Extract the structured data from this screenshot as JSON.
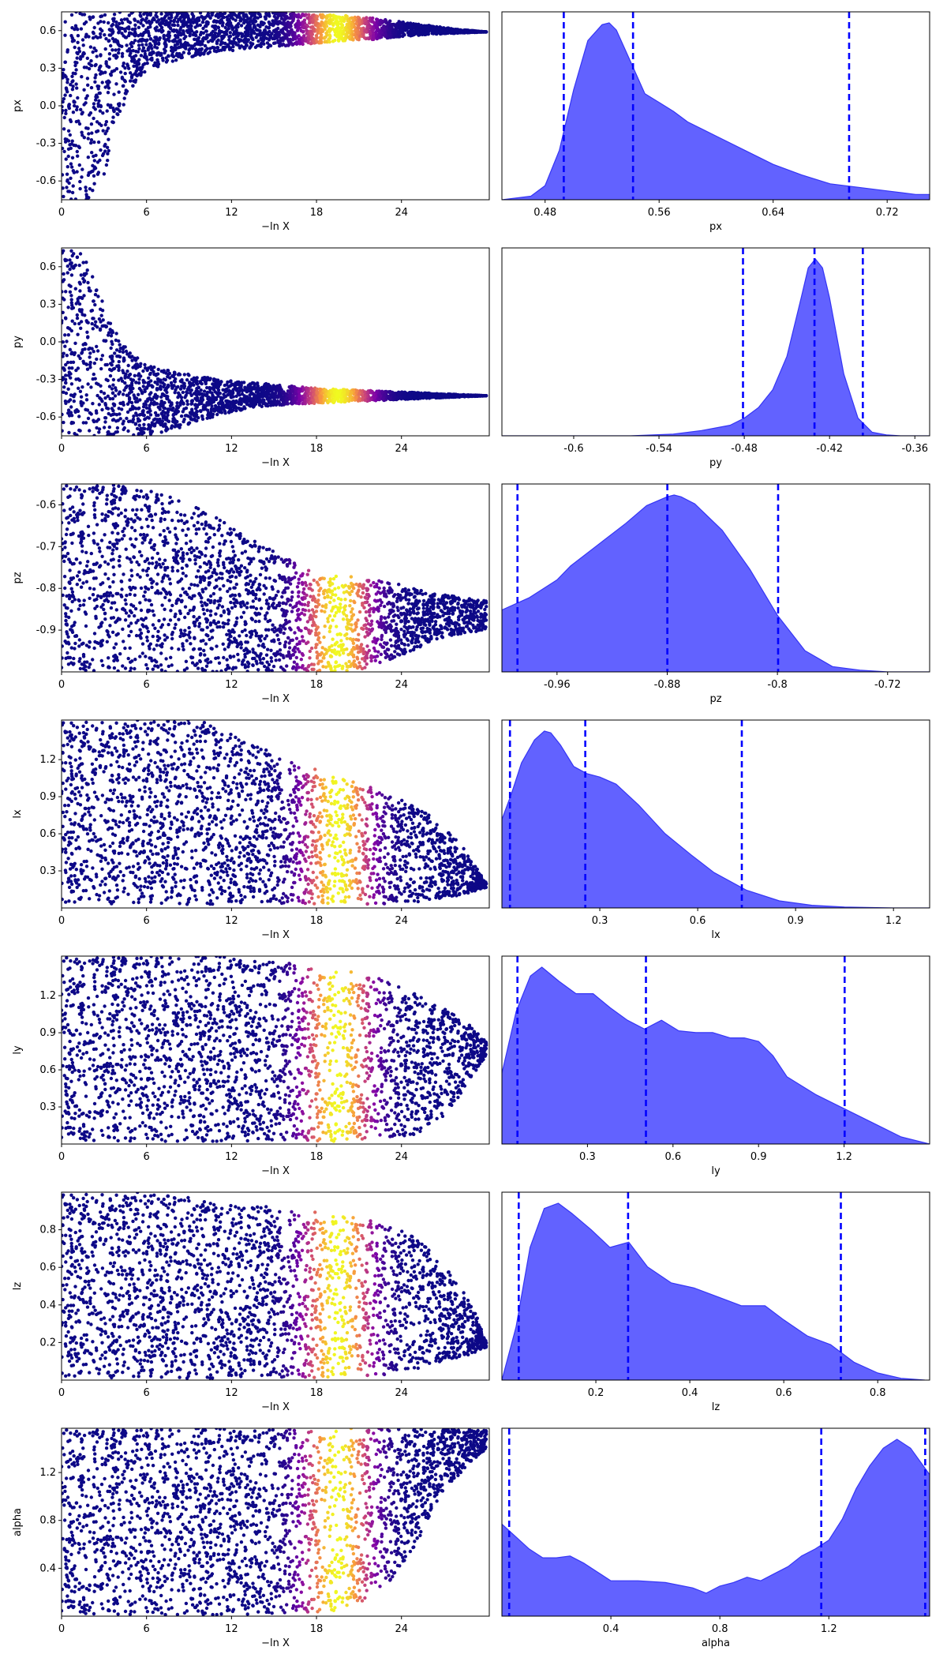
{
  "colors": {
    "kde_fill": "#6262ff",
    "kde_line": "#3535f5",
    "quantile_line": "#0000ff",
    "scatter_low": "#0d0887",
    "scatter_mid": "#cc4778",
    "scatter_high": "#f0f921"
  },
  "chart_data": [
    {
      "type": "scatter",
      "ylabel": "px",
      "xlabel": "−ln X",
      "x_ticks": [
        "0",
        "6",
        "12",
        "18",
        "24"
      ],
      "y_ticks": [
        "0.6",
        "0.3",
        "0.0",
        "-0.3",
        "-0.6"
      ],
      "xlim": [
        0,
        30.2
      ],
      "ylim": [
        -0.75,
        0.75
      ],
      "envelope": {
        "x": [
          0,
          1,
          2,
          3,
          4,
          5,
          6,
          8,
          10,
          12,
          14,
          16,
          18,
          20,
          22,
          24,
          26,
          28,
          30
        ],
        "lower": [
          -0.75,
          -0.75,
          -0.75,
          -0.55,
          -0.1,
          0.15,
          0.28,
          0.36,
          0.41,
          0.44,
          0.46,
          0.48,
          0.5,
          0.52,
          0.53,
          0.55,
          0.57,
          0.58,
          0.59
        ],
        "upper": [
          0.75,
          0.75,
          0.75,
          0.75,
          0.75,
          0.75,
          0.75,
          0.75,
          0.75,
          0.75,
          0.75,
          0.74,
          0.73,
          0.72,
          0.7,
          0.67,
          0.64,
          0.61,
          0.59
        ]
      },
      "weight_peak_x": 19.5,
      "weight_width": 1.6
    },
    {
      "type": "area",
      "xlabel": "px",
      "x_ticks": [
        0.48,
        0.56,
        0.64,
        0.72
      ],
      "xlim": [
        0.4497,
        0.7498
      ],
      "kde": {
        "x": [
          0.45,
          0.47,
          0.48,
          0.49,
          0.5,
          0.51,
          0.52,
          0.525,
          0.53,
          0.54,
          0.55,
          0.56,
          0.57,
          0.58,
          0.6,
          0.62,
          0.64,
          0.66,
          0.68,
          0.7,
          0.72,
          0.74,
          0.75
        ],
        "y": [
          0,
          0.02,
          0.08,
          0.28,
          0.62,
          0.9,
          0.99,
          1.0,
          0.96,
          0.78,
          0.6,
          0.55,
          0.5,
          0.44,
          0.36,
          0.28,
          0.2,
          0.14,
          0.09,
          0.07,
          0.05,
          0.03,
          0.03
        ]
      },
      "quantiles": [
        0.4931,
        0.5417,
        0.6933
      ]
    },
    {
      "type": "scatter",
      "ylabel": "py",
      "xlabel": "−ln X",
      "x_ticks": [
        "0",
        "6",
        "12",
        "18",
        "24"
      ],
      "y_ticks": [
        "0.6",
        "0.3",
        "0.0",
        "-0.3",
        "-0.6"
      ],
      "xlim": [
        0,
        30.2
      ],
      "ylim": [
        -0.75,
        0.75
      ],
      "envelope": {
        "x": [
          0,
          1,
          2,
          3,
          4,
          5,
          6,
          8,
          10,
          12,
          14,
          16,
          18,
          20,
          22,
          24,
          26,
          28,
          30
        ],
        "lower": [
          -0.75,
          -0.75,
          -0.75,
          -0.75,
          -0.75,
          -0.75,
          -0.75,
          -0.7,
          -0.62,
          -0.56,
          -0.52,
          -0.5,
          -0.49,
          -0.48,
          -0.47,
          -0.46,
          -0.45,
          -0.44,
          -0.43
        ],
        "upper": [
          0.75,
          0.75,
          0.62,
          0.3,
          0.05,
          -0.1,
          -0.18,
          -0.24,
          -0.28,
          -0.31,
          -0.33,
          -0.35,
          -0.37,
          -0.38,
          -0.39,
          -0.4,
          -0.41,
          -0.42,
          -0.43
        ]
      },
      "weight_peak_x": 19.5,
      "weight_width": 1.6
    },
    {
      "type": "area",
      "xlabel": "py",
      "x_ticks": [
        -0.6,
        -0.54,
        -0.48,
        -0.42,
        -0.36
      ],
      "xlim": [
        -0.6505,
        -0.3496
      ],
      "kde": {
        "x": [
          -0.65,
          -0.56,
          -0.53,
          -0.51,
          -0.49,
          -0.48,
          -0.47,
          -0.46,
          -0.45,
          -0.44,
          -0.435,
          -0.43,
          -0.425,
          -0.42,
          -0.41,
          -0.4,
          -0.39,
          -0.38,
          -0.37,
          -0.35
        ],
        "y": [
          0,
          0,
          0.01,
          0.03,
          0.06,
          0.1,
          0.16,
          0.26,
          0.45,
          0.78,
          0.95,
          1.0,
          0.95,
          0.78,
          0.35,
          0.1,
          0.02,
          0.005,
          0,
          0
        ]
      },
      "quantiles": [
        -0.4809,
        -0.4306,
        -0.3966
      ]
    },
    {
      "type": "scatter",
      "ylabel": "pz",
      "xlabel": "−ln X",
      "x_ticks": [
        "0",
        "6",
        "12",
        "18",
        "24"
      ],
      "y_ticks": [
        "-0.6",
        "-0.7",
        "-0.8",
        "-0.9"
      ],
      "xlim": [
        0,
        30.2
      ],
      "ylim": [
        -1.0,
        -0.55
      ],
      "envelope": {
        "x": [
          0,
          4,
          8,
          12,
          14,
          16,
          18,
          20,
          22,
          24,
          26,
          28,
          30
        ],
        "lower": [
          -1.0,
          -1.0,
          -1.0,
          -1.0,
          -1.0,
          -1.0,
          -1.0,
          -1.0,
          -0.99,
          -0.96,
          -0.93,
          -0.91,
          -0.9
        ],
        "upper": [
          -0.55,
          -0.55,
          -0.58,
          -0.65,
          -0.69,
          -0.73,
          -0.76,
          -0.77,
          -0.78,
          -0.79,
          -0.81,
          -0.82,
          -0.83
        ]
      },
      "weight_peak_x": 19.5,
      "weight_width": 1.6
    },
    {
      "type": "area",
      "xlabel": "pz",
      "x_ticks": [
        -0.96,
        -0.88,
        -0.8,
        -0.72
      ],
      "xlim": [
        -1.0,
        -0.6895
      ],
      "kde": {
        "x": [
          -1.0,
          -0.98,
          -0.96,
          -0.95,
          -0.93,
          -0.91,
          -0.895,
          -0.88,
          -0.875,
          -0.87,
          -0.86,
          -0.84,
          -0.82,
          -0.8,
          -0.78,
          -0.76,
          -0.74,
          -0.72,
          -0.69
        ],
        "y": [
          0.35,
          0.42,
          0.52,
          0.6,
          0.72,
          0.84,
          0.94,
          0.99,
          1.0,
          0.99,
          0.95,
          0.8,
          0.58,
          0.32,
          0.12,
          0.03,
          0.01,
          0,
          0
        ]
      },
      "quantiles": [
        -0.9887,
        -0.8799,
        -0.7995
      ]
    },
    {
      "type": "scatter",
      "ylabel": "lx",
      "xlabel": "−ln X",
      "x_ticks": [
        "0",
        "6",
        "12",
        "18",
        "24"
      ],
      "y_ticks": [
        "1.2",
        "0.9",
        "0.6",
        "0.3"
      ],
      "xlim": [
        0,
        30.2
      ],
      "ylim": [
        0.0,
        1.52
      ],
      "envelope": {
        "x": [
          0,
          6,
          10,
          12,
          14,
          16,
          18,
          20,
          22,
          24,
          26,
          28,
          30
        ],
        "lower": [
          0.03,
          0.03,
          0.03,
          0.03,
          0.03,
          0.03,
          0.03,
          0.03,
          0.03,
          0.04,
          0.06,
          0.1,
          0.16
        ],
        "upper": [
          1.52,
          1.52,
          1.52,
          1.42,
          1.3,
          1.2,
          1.12,
          1.05,
          0.98,
          0.88,
          0.75,
          0.55,
          0.2
        ]
      },
      "weight_peak_x": 19.5,
      "weight_width": 1.6
    },
    {
      "type": "area",
      "xlabel": "lx",
      "x_ticks": [
        0.3,
        0.6,
        0.9,
        1.2
      ],
      "xlim": [
        0.0,
        1.3108
      ],
      "kde": {
        "x": [
          0.0,
          0.03,
          0.06,
          0.1,
          0.13,
          0.15,
          0.18,
          0.22,
          0.26,
          0.3,
          0.35,
          0.42,
          0.5,
          0.58,
          0.65,
          0.75,
          0.85,
          0.95,
          1.05,
          1.2,
          1.31
        ],
        "y": [
          0.5,
          0.65,
          0.82,
          0.95,
          1.0,
          0.99,
          0.92,
          0.8,
          0.76,
          0.74,
          0.7,
          0.58,
          0.42,
          0.3,
          0.2,
          0.1,
          0.04,
          0.015,
          0.005,
          0,
          0
        ]
      },
      "quantiles": [
        0.0247,
        0.2555,
        0.7352
      ]
    },
    {
      "type": "scatter",
      "ylabel": "ly",
      "xlabel": "−ln X",
      "x_ticks": [
        "0",
        "6",
        "12",
        "18",
        "24"
      ],
      "y_ticks": [
        "1.2",
        "0.9",
        "0.6",
        "0.3"
      ],
      "xlim": [
        0,
        30.2
      ],
      "ylim": [
        0.0,
        1.52
      ],
      "envelope": {
        "x": [
          0,
          8,
          12,
          15,
          17,
          19,
          21,
          23,
          25,
          27,
          29,
          30
        ],
        "lower": [
          0.02,
          0.02,
          0.02,
          0.02,
          0.02,
          0.02,
          0.03,
          0.04,
          0.08,
          0.2,
          0.55,
          0.72
        ],
        "upper": [
          1.52,
          1.52,
          1.52,
          1.48,
          1.45,
          1.42,
          1.38,
          1.32,
          1.22,
          1.1,
          0.95,
          0.82
        ]
      },
      "weight_peak_x": 19.5,
      "weight_width": 1.6
    },
    {
      "type": "area",
      "xlabel": "ly",
      "x_ticks": [
        0.3,
        0.6,
        0.9,
        1.2
      ],
      "xlim": [
        0.0,
        1.5
      ],
      "kde": {
        "x": [
          0.0,
          0.05,
          0.1,
          0.14,
          0.2,
          0.26,
          0.32,
          0.38,
          0.44,
          0.5,
          0.56,
          0.62,
          0.68,
          0.74,
          0.8,
          0.85,
          0.9,
          0.95,
          1.0,
          1.1,
          1.2,
          1.3,
          1.4,
          1.5
        ],
        "y": [
          0.4,
          0.75,
          0.95,
          1.0,
          0.92,
          0.85,
          0.85,
          0.77,
          0.7,
          0.65,
          0.7,
          0.64,
          0.63,
          0.63,
          0.6,
          0.6,
          0.58,
          0.5,
          0.38,
          0.28,
          0.2,
          0.12,
          0.04,
          0
        ]
      },
      "quantiles": [
        0.0545,
        0.5051,
        1.2019
      ]
    },
    {
      "type": "scatter",
      "ylabel": "lz",
      "xlabel": "−ln X",
      "x_ticks": [
        "0",
        "6",
        "12",
        "18",
        "24"
      ],
      "y_ticks": [
        "0.8",
        "0.6",
        "0.4",
        "0.2"
      ],
      "xlim": [
        0,
        30.2
      ],
      "ylim": [
        0.0,
        1.0
      ],
      "envelope": {
        "x": [
          0,
          6,
          10,
          12,
          15,
          17,
          19,
          21,
          23,
          25,
          27,
          29,
          30
        ],
        "lower": [
          0.01,
          0.01,
          0.01,
          0.01,
          0.01,
          0.01,
          0.01,
          0.02,
          0.03,
          0.06,
          0.1,
          0.14,
          0.17
        ],
        "upper": [
          1.0,
          1.0,
          0.96,
          0.94,
          0.92,
          0.9,
          0.89,
          0.87,
          0.84,
          0.76,
          0.62,
          0.4,
          0.2
        ]
      },
      "weight_peak_x": 19.5,
      "weight_width": 1.6
    },
    {
      "type": "area",
      "xlabel": "lz",
      "x_ticks": [
        0.2,
        0.4,
        0.6,
        0.8
      ],
      "xlim": [
        0.0,
        0.9105
      ],
      "kde": {
        "x": [
          0.0,
          0.03,
          0.06,
          0.09,
          0.12,
          0.15,
          0.19,
          0.23,
          0.27,
          0.31,
          0.36,
          0.41,
          0.46,
          0.51,
          0.56,
          0.6,
          0.65,
          0.7,
          0.75,
          0.8,
          0.85,
          0.9
        ],
        "y": [
          0,
          0.3,
          0.75,
          0.97,
          1.0,
          0.94,
          0.85,
          0.75,
          0.78,
          0.64,
          0.55,
          0.52,
          0.47,
          0.42,
          0.42,
          0.34,
          0.25,
          0.2,
          0.1,
          0.04,
          0.01,
          0
        ]
      },
      "quantiles": [
        0.0358,
        0.2686,
        0.7215
      ]
    },
    {
      "type": "scatter",
      "ylabel": "alpha",
      "xlabel": "−ln X",
      "x_ticks": [
        "0",
        "6",
        "12",
        "18",
        "24"
      ],
      "y_ticks": [
        "1.2",
        "0.8",
        "0.4"
      ],
      "xlim": [
        0,
        30.2
      ],
      "ylim": [
        0.0,
        1.57
      ],
      "envelope": {
        "x": [
          0,
          6,
          12,
          15,
          17,
          19,
          21,
          23,
          25,
          27,
          29,
          30
        ],
        "lower": [
          0.01,
          0.01,
          0.01,
          0.01,
          0.02,
          0.04,
          0.1,
          0.25,
          0.6,
          1.05,
          1.3,
          1.4
        ],
        "upper": [
          1.57,
          1.57,
          1.57,
          1.57,
          1.57,
          1.57,
          1.57,
          1.57,
          1.57,
          1.57,
          1.56,
          1.55
        ]
      },
      "weight_peak_x": 19.5,
      "weight_width": 1.6
    },
    {
      "type": "area",
      "xlabel": "alpha",
      "x_ticks": [
        0.4,
        0.8,
        1.2
      ],
      "xlim": [
        0.0,
        1.57
      ],
      "kde": {
        "x": [
          0.0,
          0.05,
          0.1,
          0.15,
          0.2,
          0.25,
          0.3,
          0.35,
          0.4,
          0.5,
          0.6,
          0.7,
          0.75,
          0.8,
          0.85,
          0.9,
          0.95,
          1.0,
          1.05,
          1.1,
          1.15,
          1.2,
          1.25,
          1.3,
          1.35,
          1.4,
          1.45,
          1.5,
          1.57
        ],
        "y": [
          0.52,
          0.45,
          0.38,
          0.33,
          0.33,
          0.34,
          0.3,
          0.25,
          0.2,
          0.2,
          0.19,
          0.16,
          0.13,
          0.17,
          0.19,
          0.22,
          0.2,
          0.24,
          0.28,
          0.34,
          0.38,
          0.43,
          0.55,
          0.72,
          0.85,
          0.95,
          1.0,
          0.95,
          0.8
        ]
      },
      "quantiles": [
        0.0267,
        1.1722,
        1.5537
      ]
    }
  ]
}
